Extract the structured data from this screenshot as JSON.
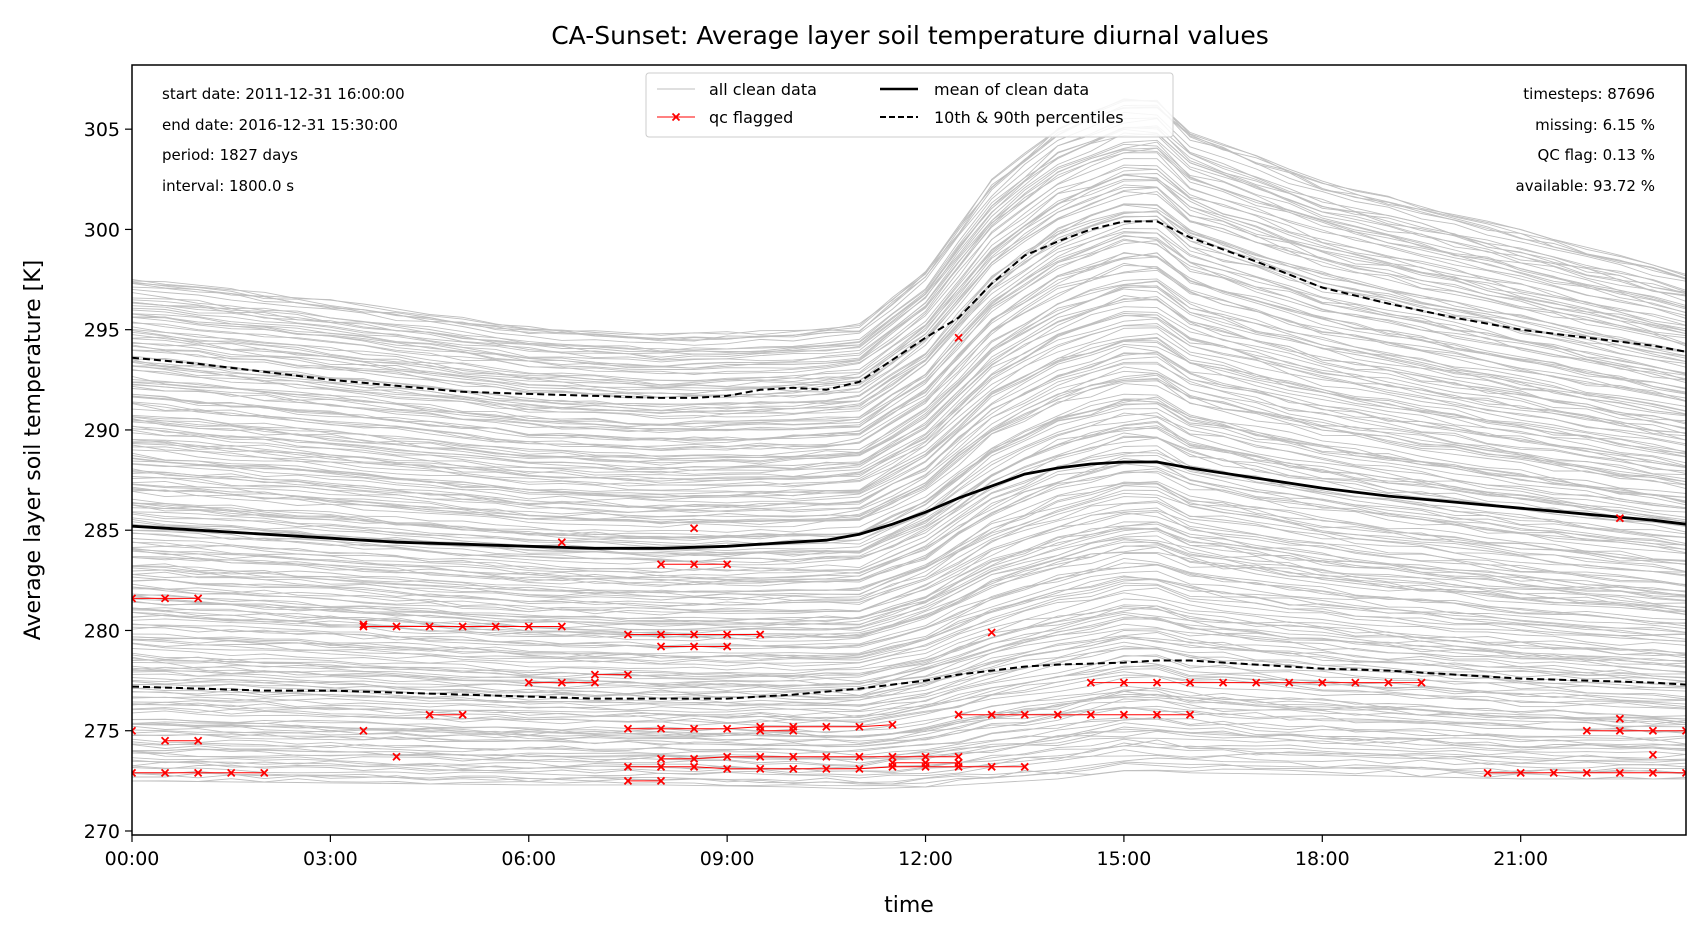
{
  "chart_data": {
    "type": "line",
    "title": "CA-Sunset: Average layer soil temperature diurnal values",
    "xlabel": "time",
    "ylabel": "Average layer soil temperature [K]",
    "xlim": [
      0,
      23.5
    ],
    "ylim": [
      269.8,
      308.2
    ],
    "x_ticks": [
      {
        "value": 0,
        "label": "00:00"
      },
      {
        "value": 3,
        "label": "03:00"
      },
      {
        "value": 6,
        "label": "06:00"
      },
      {
        "value": 9,
        "label": "09:00"
      },
      {
        "value": 12,
        "label": "12:00"
      },
      {
        "value": 15,
        "label": "15:00"
      },
      {
        "value": 18,
        "label": "18:00"
      },
      {
        "value": 21,
        "label": "21:00"
      }
    ],
    "y_ticks": [
      {
        "value": 270,
        "label": "270"
      },
      {
        "value": 275,
        "label": "275"
      },
      {
        "value": 280,
        "label": "280"
      },
      {
        "value": 285,
        "label": "285"
      },
      {
        "value": 290,
        "label": "290"
      },
      {
        "value": 295,
        "label": "295"
      },
      {
        "value": 300,
        "label": "300"
      },
      {
        "value": 305,
        "label": "305"
      }
    ],
    "grid": false,
    "legend_position": "top-center",
    "legend": [
      {
        "label": "all clean data",
        "color": "#bfbfbf",
        "style": "thin-line"
      },
      {
        "label": "mean of clean data",
        "color": "#000000",
        "style": "thick-line"
      },
      {
        "label": "qc flagged",
        "color": "#ff0000",
        "style": "line-x-marker"
      },
      {
        "label": "10th & 90th percentiles",
        "color": "#000000",
        "style": "dashed-line"
      }
    ],
    "info_left": [
      "start date: 2011-12-31 16:00:00",
      "end date: 2016-12-31 15:30:00",
      "period: 1827 days",
      "interval: 1800.0 s"
    ],
    "info_right": [
      "timesteps: 87696",
      "missing: 6.15 %",
      "QC flag: 0.13 %",
      "available: 93.72 %"
    ],
    "band": {
      "x": [
        0,
        3,
        6,
        8,
        10,
        11,
        12,
        13,
        14,
        15,
        15.5,
        16,
        18,
        21,
        23.5
      ],
      "upper": [
        297.6,
        296.5,
        295.2,
        294.8,
        295.0,
        295.3,
        298.0,
        302.5,
        305.2,
        306.6,
        306.6,
        305.0,
        302.5,
        300.0,
        297.9
      ],
      "lower": [
        272.5,
        272.4,
        272.3,
        272.3,
        272.2,
        272.1,
        272.2,
        272.4,
        272.6,
        273.0,
        273.0,
        272.9,
        272.8,
        272.6,
        272.6
      ]
    },
    "series": [
      {
        "name": "mean of clean data",
        "x": [
          0,
          1,
          2,
          3,
          4,
          5,
          6,
          7,
          8,
          9,
          9.5,
          10,
          10.5,
          11,
          11.5,
          12,
          12.5,
          13,
          13.5,
          14,
          14.5,
          15,
          15.5,
          16,
          17,
          18,
          19,
          20,
          21,
          22,
          23,
          23.5
        ],
        "y": [
          285.2,
          285.0,
          284.8,
          284.6,
          284.4,
          284.3,
          284.2,
          284.1,
          284.1,
          284.2,
          284.3,
          284.4,
          284.5,
          284.8,
          285.3,
          285.9,
          286.6,
          287.2,
          287.8,
          288.1,
          288.3,
          288.4,
          288.4,
          288.1,
          287.6,
          287.1,
          286.7,
          286.4,
          286.1,
          285.8,
          285.5,
          285.3
        ]
      },
      {
        "name": "90th percentile",
        "x": [
          0,
          1,
          2,
          3,
          4,
          5,
          6,
          7,
          8,
          8.5,
          9,
          9.5,
          10,
          10.5,
          11,
          11.5,
          12,
          12.5,
          13,
          13.5,
          14,
          14.5,
          15,
          15.5,
          16,
          17,
          18,
          19,
          20,
          21,
          22,
          23,
          23.5
        ],
        "y": [
          293.6,
          293.3,
          292.9,
          292.5,
          292.2,
          291.9,
          291.8,
          291.7,
          291.6,
          291.6,
          291.7,
          292.0,
          292.1,
          292.0,
          292.4,
          293.5,
          294.6,
          295.6,
          297.3,
          298.7,
          299.4,
          300.0,
          300.4,
          300.4,
          299.6,
          298.4,
          297.1,
          296.3,
          295.6,
          295.0,
          294.6,
          294.2,
          293.9
        ]
      },
      {
        "name": "10th percentile",
        "x": [
          0,
          1,
          2,
          2.5,
          3,
          4,
          5,
          6,
          7,
          8,
          9,
          10,
          11,
          11.5,
          12,
          12.5,
          13,
          13.5,
          14,
          15,
          15.5,
          16,
          17,
          18,
          19,
          20,
          21,
          22,
          23,
          23.5
        ],
        "y": [
          277.2,
          277.1,
          277.0,
          277.0,
          277.0,
          276.9,
          276.8,
          276.7,
          276.6,
          276.6,
          276.6,
          276.8,
          277.1,
          277.3,
          277.5,
          277.8,
          278.0,
          278.2,
          278.3,
          278.4,
          278.5,
          278.5,
          278.3,
          278.1,
          278.0,
          277.8,
          277.6,
          277.5,
          277.4,
          277.3
        ]
      }
    ],
    "qc_flagged": [
      {
        "x": [
          0,
          0.5,
          1
        ],
        "y": [
          281.6,
          281.6,
          281.6
        ]
      },
      {
        "x": [
          0
        ],
        "y": [
          275.0
        ]
      },
      {
        "x": [
          0.5,
          1
        ],
        "y": [
          274.5,
          274.5
        ]
      },
      {
        "x": [
          0,
          0.5,
          1,
          1.5,
          2
        ],
        "y": [
          272.9,
          272.9,
          272.9,
          272.9,
          272.9
        ]
      },
      {
        "x": [
          3.5,
          4,
          4.5,
          5,
          5.5,
          6,
          6.5
        ],
        "y": [
          280.2,
          280.2,
          280.2,
          280.2,
          280.2,
          280.2,
          280.2
        ]
      },
      {
        "x": [
          3.5
        ],
        "y": [
          280.3
        ]
      },
      {
        "x": [
          3.5
        ],
        "y": [
          275.0
        ]
      },
      {
        "x": [
          4
        ],
        "y": [
          273.7
        ]
      },
      {
        "x": [
          4.5,
          5
        ],
        "y": [
          275.8,
          275.8
        ]
      },
      {
        "x": [
          6,
          6.5,
          7
        ],
        "y": [
          277.4,
          277.4,
          277.4
        ]
      },
      {
        "x": [
          7,
          7.5
        ],
        "y": [
          277.8,
          277.8
        ]
      },
      {
        "x": [
          6.5
        ],
        "y": [
          284.4
        ]
      },
      {
        "x": [
          8,
          8.5,
          9
        ],
        "y": [
          283.3,
          283.3,
          283.3
        ]
      },
      {
        "x": [
          8.5
        ],
        "y": [
          285.1
        ]
      },
      {
        "x": [
          7.5,
          8,
          8.5,
          9,
          9.5
        ],
        "y": [
          279.8,
          279.8,
          279.8,
          279.8,
          279.8
        ]
      },
      {
        "x": [
          8,
          8.5,
          9
        ],
        "y": [
          279.2,
          279.2,
          279.2
        ]
      },
      {
        "x": [
          7.5,
          8,
          8.5,
          9,
          9.5,
          10,
          10.5,
          11,
          11.5
        ],
        "y": [
          275.1,
          275.1,
          275.1,
          275.1,
          275.2,
          275.2,
          275.2,
          275.2,
          275.3
        ]
      },
      {
        "x": [
          9.5,
          10
        ],
        "y": [
          275.0,
          275.0
        ]
      },
      {
        "x": [
          8,
          8.5,
          9,
          9.5,
          10,
          10.5,
          11,
          11.5,
          12,
          12.5
        ],
        "y": [
          273.6,
          273.6,
          273.7,
          273.7,
          273.7,
          273.7,
          273.7,
          273.7,
          273.7,
          273.7
        ]
      },
      {
        "x": [
          7.5,
          8,
          8.5,
          9,
          9.5,
          10,
          10.5,
          11,
          11.5,
          12,
          12.5,
          13,
          13.5
        ],
        "y": [
          273.2,
          273.2,
          273.2,
          273.1,
          273.1,
          273.1,
          273.1,
          273.1,
          273.2,
          273.2,
          273.2,
          273.2,
          273.2
        ]
      },
      {
        "x": [
          11.5,
          12,
          12.5
        ],
        "y": [
          273.4,
          273.4,
          273.4
        ]
      },
      {
        "x": [
          7.5,
          8
        ],
        "y": [
          272.5,
          272.5
        ]
      },
      {
        "x": [
          12.5
        ],
        "y": [
          294.6
        ]
      },
      {
        "x": [
          13
        ],
        "y": [
          279.9
        ]
      },
      {
        "x": [
          12.5,
          13,
          13.5,
          14,
          14.5,
          15,
          15.5,
          16
        ],
        "y": [
          275.8,
          275.8,
          275.8,
          275.8,
          275.8,
          275.8,
          275.8,
          275.8
        ]
      },
      {
        "x": [
          14.5,
          15,
          15.5,
          16,
          16.5,
          17,
          17.5,
          18,
          18.5,
          19,
          19.5
        ],
        "y": [
          277.4,
          277.4,
          277.4,
          277.4,
          277.4,
          277.4,
          277.4,
          277.4,
          277.4,
          277.4,
          277.4
        ]
      },
      {
        "x": [
          22.5
        ],
        "y": [
          285.6
        ]
      },
      {
        "x": [
          22,
          22.5,
          23,
          23.5
        ],
        "y": [
          275.0,
          275.0,
          275.0,
          275.0
        ]
      },
      {
        "x": [
          22.5
        ],
        "y": [
          275.6
        ]
      },
      {
        "x": [
          23
        ],
        "y": [
          273.8
        ]
      },
      {
        "x": [
          20.5,
          21,
          21.5,
          22,
          22.5,
          23,
          23.5
        ],
        "y": [
          272.9,
          272.9,
          272.9,
          272.9,
          272.9,
          272.9,
          272.9
        ]
      }
    ],
    "colors": {
      "clean_data": "#bfbfbf",
      "mean": "#000000",
      "percentiles": "#000000",
      "qc": "#ff0000"
    }
  }
}
